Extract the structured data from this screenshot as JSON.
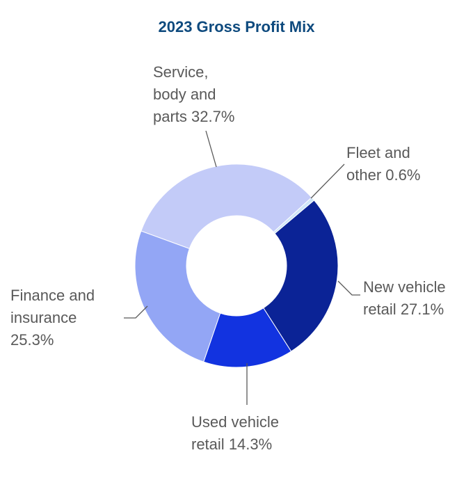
{
  "chart_data": {
    "type": "donut",
    "title": "2023 Gross Profit Mix",
    "categories": [
      "Service, body and parts",
      "Fleet and other",
      "New vehicle retail",
      "Used vehicle retail",
      "Finance and insurance"
    ],
    "values": [
      32.7,
      0.6,
      27.1,
      14.3,
      25.3
    ],
    "value_labels": [
      "32.7%",
      "0.6%",
      "27.1%",
      "14.3%",
      "25.3%"
    ],
    "colors": [
      "#c3cbf8",
      "#cfe6f8",
      "#0b2396",
      "#1233e0",
      "#93a6f5"
    ]
  }
}
